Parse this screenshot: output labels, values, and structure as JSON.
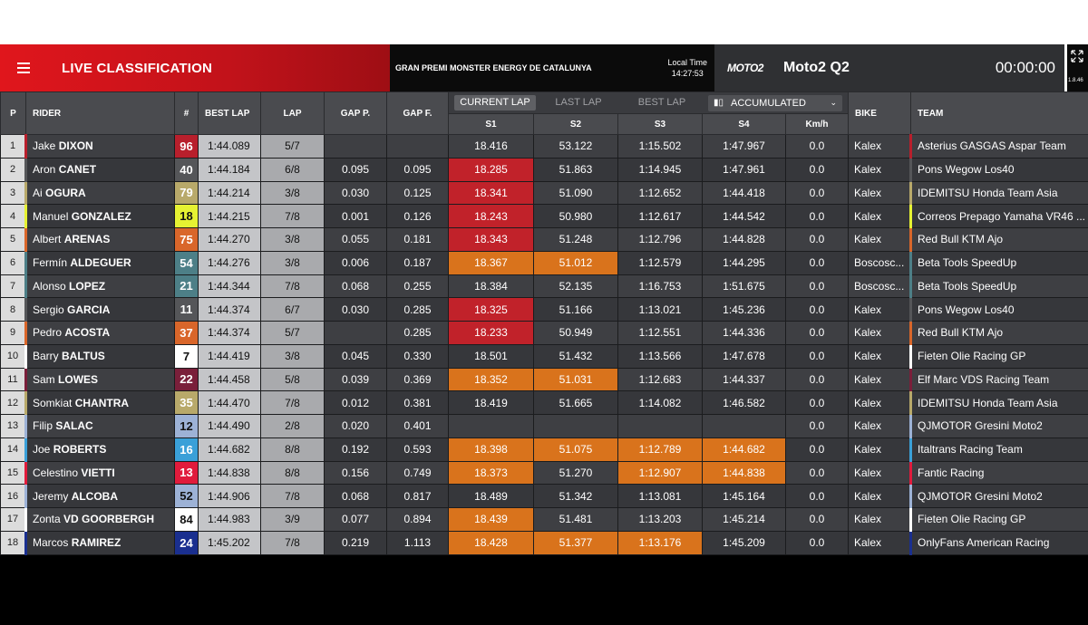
{
  "header": {
    "title": "LIVE CLASSIFICATION",
    "event": "GRAN PREMI MONSTER ENERGY DE CATALUNYA",
    "local_time_label": "Local Time",
    "local_time": "14:27:53",
    "category_logo": "MOTO2",
    "session": "Moto2 Q2",
    "clock": "00:00:00",
    "version": "1.8.46"
  },
  "columns": {
    "p": "P",
    "rider": "RIDER",
    "num": "#",
    "best_lap": "BEST LAP",
    "lap": "LAP",
    "gap_p": "GAP P.",
    "gap_f": "GAP F.",
    "tabs": [
      "CURRENT LAP",
      "LAST LAP",
      "BEST LAP"
    ],
    "accumulated": "ACCUMULATED",
    "s1": "S1",
    "s2": "S2",
    "s3": "S3",
    "s4": "S4",
    "kmh": "Km/h",
    "bike": "BIKE",
    "team": "TEAM"
  },
  "rows": [
    {
      "p": "1",
      "first": "Jake",
      "last": "DIXON",
      "num": "96",
      "num_bg": "#b81f2c",
      "num_fg": "#ffffff",
      "stripe": "#b81f2c",
      "best": "1:44.089",
      "lap": "5/7",
      "gap_p": "",
      "gap_f": "",
      "s1": "18.416",
      "s2": "53.122",
      "s3": "1:15.502",
      "s4": "1:47.967",
      "c1": "",
      "c2": "",
      "c3": "",
      "c4": "",
      "kmh": "0.0",
      "bike": "Kalex",
      "team": "Asterius GASGAS Aspar Team",
      "team_color": "#b81f2c"
    },
    {
      "p": "2",
      "first": "Aron",
      "last": "CANET",
      "num": "40",
      "num_bg": "#555659",
      "num_fg": "#ffffff",
      "stripe": "#555659",
      "best": "1:44.184",
      "lap": "6/8",
      "gap_p": "0.095",
      "gap_f": "0.095",
      "s1": "18.285",
      "s2": "51.863",
      "s3": "1:14.945",
      "s4": "1:47.961",
      "c1": "red",
      "c2": "",
      "c3": "",
      "c4": "",
      "kmh": "0.0",
      "bike": "Kalex",
      "team": "Pons Wegow Los40",
      "team_color": "#555659"
    },
    {
      "p": "3",
      "first": "Ai",
      "last": "OGURA",
      "num": "79",
      "num_bg": "#b8a96a",
      "num_fg": "#ffffff",
      "stripe": "#b8a96a",
      "best": "1:44.214",
      "lap": "3/8",
      "gap_p": "0.030",
      "gap_f": "0.125",
      "s1": "18.341",
      "s2": "51.090",
      "s3": "1:12.652",
      "s4": "1:44.418",
      "c1": "red",
      "c2": "",
      "c3": "",
      "c4": "",
      "kmh": "0.0",
      "bike": "Kalex",
      "team": "IDEMITSU Honda Team Asia",
      "team_color": "#b8a96a"
    },
    {
      "p": "4",
      "first": "Manuel",
      "last": "GONZALEZ",
      "num": "18",
      "num_bg": "#e6f232",
      "num_fg": "#111111",
      "stripe": "#e6f232",
      "best": "1:44.215",
      "lap": "7/8",
      "gap_p": "0.001",
      "gap_f": "0.126",
      "s1": "18.243",
      "s2": "50.980",
      "s3": "1:12.617",
      "s4": "1:44.542",
      "c1": "red",
      "c2": "",
      "c3": "",
      "c4": "",
      "kmh": "0.0",
      "bike": "Kalex",
      "team": "Correos Prepago Yamaha VR46 ...",
      "team_color": "#e6f232"
    },
    {
      "p": "5",
      "first": "Albert",
      "last": "ARENAS",
      "num": "75",
      "num_bg": "#d9662a",
      "num_fg": "#ffffff",
      "stripe": "#d9662a",
      "best": "1:44.270",
      "lap": "3/8",
      "gap_p": "0.055",
      "gap_f": "0.181",
      "s1": "18.343",
      "s2": "51.248",
      "s3": "1:12.796",
      "s4": "1:44.828",
      "c1": "red",
      "c2": "",
      "c3": "",
      "c4": "",
      "kmh": "0.0",
      "bike": "Kalex",
      "team": "Red Bull KTM Ajo",
      "team_color": "#d9662a"
    },
    {
      "p": "6",
      "first": "Fermín",
      "last": "ALDEGUER",
      "num": "54",
      "num_bg": "#4d7f87",
      "num_fg": "#ffffff",
      "stripe": "#4d7f87",
      "best": "1:44.276",
      "lap": "3/8",
      "gap_p": "0.006",
      "gap_f": "0.187",
      "s1": "18.367",
      "s2": "51.012",
      "s3": "1:12.579",
      "s4": "1:44.295",
      "c1": "orange",
      "c2": "orange",
      "c3": "",
      "c4": "",
      "kmh": "0.0",
      "bike": "Boscosc...",
      "team": "Beta Tools SpeedUp",
      "team_color": "#4d7f87"
    },
    {
      "p": "7",
      "first": "Alonso",
      "last": "LOPEZ",
      "num": "21",
      "num_bg": "#4d7f87",
      "num_fg": "#ffffff",
      "stripe": "#4d7f87",
      "best": "1:44.344",
      "lap": "7/8",
      "gap_p": "0.068",
      "gap_f": "0.255",
      "s1": "18.384",
      "s2": "52.135",
      "s3": "1:16.753",
      "s4": "1:51.675",
      "c1": "",
      "c2": "",
      "c3": "",
      "c4": "",
      "kmh": "0.0",
      "bike": "Boscosc...",
      "team": "Beta Tools SpeedUp",
      "team_color": "#4d7f87"
    },
    {
      "p": "8",
      "first": "Sergio",
      "last": "GARCIA",
      "num": "11",
      "num_bg": "#555659",
      "num_fg": "#ffffff",
      "stripe": "#555659",
      "best": "1:44.374",
      "lap": "6/7",
      "gap_p": "0.030",
      "gap_f": "0.285",
      "s1": "18.325",
      "s2": "51.166",
      "s3": "1:13.021",
      "s4": "1:45.236",
      "c1": "red",
      "c2": "",
      "c3": "",
      "c4": "",
      "kmh": "0.0",
      "bike": "Kalex",
      "team": "Pons Wegow Los40",
      "team_color": "#555659"
    },
    {
      "p": "9",
      "first": "Pedro",
      "last": "ACOSTA",
      "num": "37",
      "num_bg": "#d9662a",
      "num_fg": "#ffffff",
      "stripe": "#d9662a",
      "best": "1:44.374",
      "lap": "5/7",
      "gap_p": "",
      "gap_f": "0.285",
      "s1": "18.233",
      "s2": "50.949",
      "s3": "1:12.551",
      "s4": "1:44.336",
      "c1": "red",
      "c2": "",
      "c3": "",
      "c4": "",
      "kmh": "0.0",
      "bike": "Kalex",
      "team": "Red Bull KTM Ajo",
      "team_color": "#d9662a"
    },
    {
      "p": "10",
      "first": "Barry",
      "last": "BALTUS",
      "num": "7",
      "num_bg": "#ffffff",
      "num_fg": "#111111",
      "stripe": "#ffffff",
      "best": "1:44.419",
      "lap": "3/8",
      "gap_p": "0.045",
      "gap_f": "0.330",
      "s1": "18.501",
      "s2": "51.432",
      "s3": "1:13.566",
      "s4": "1:47.678",
      "c1": "",
      "c2": "",
      "c3": "",
      "c4": "",
      "kmh": "0.0",
      "bike": "Kalex",
      "team": "Fieten Olie Racing GP",
      "team_color": "#ffffff"
    },
    {
      "p": "11",
      "first": "Sam",
      "last": "LOWES",
      "num": "22",
      "num_bg": "#7a1f3a",
      "num_fg": "#ffffff",
      "stripe": "#7a1f3a",
      "best": "1:44.458",
      "lap": "5/8",
      "gap_p": "0.039",
      "gap_f": "0.369",
      "s1": "18.352",
      "s2": "51.031",
      "s3": "1:12.683",
      "s4": "1:44.337",
      "c1": "orange",
      "c2": "orange",
      "c3": "",
      "c4": "",
      "kmh": "0.0",
      "bike": "Kalex",
      "team": "Elf Marc VDS Racing Team",
      "team_color": "#7a1f3a"
    },
    {
      "p": "12",
      "first": "Somkiat",
      "last": "CHANTRA",
      "num": "35",
      "num_bg": "#b8a96a",
      "num_fg": "#ffffff",
      "stripe": "#b8a96a",
      "best": "1:44.470",
      "lap": "7/8",
      "gap_p": "0.012",
      "gap_f": "0.381",
      "s1": "18.419",
      "s2": "51.665",
      "s3": "1:14.082",
      "s4": "1:46.582",
      "c1": "",
      "c2": "",
      "c3": "",
      "c4": "",
      "kmh": "0.0",
      "bike": "Kalex",
      "team": "IDEMITSU Honda Team Asia",
      "team_color": "#b8a96a"
    },
    {
      "p": "13",
      "first": "Filip",
      "last": "SALAC",
      "num": "12",
      "num_bg": "#9db2d6",
      "num_fg": "#111111",
      "stripe": "#9db2d6",
      "best": "1:44.490",
      "lap": "2/8",
      "gap_p": "0.020",
      "gap_f": "0.401",
      "s1": "",
      "s2": "",
      "s3": "",
      "s4": "",
      "c1": "",
      "c2": "",
      "c3": "",
      "c4": "",
      "kmh": "0.0",
      "bike": "Kalex",
      "team": "QJMOTOR Gresini Moto2",
      "team_color": "#9db2d6"
    },
    {
      "p": "14",
      "first": "Joe",
      "last": "ROBERTS",
      "num": "16",
      "num_bg": "#3aa0d8",
      "num_fg": "#ffffff",
      "stripe": "#3aa0d8",
      "best": "1:44.682",
      "lap": "8/8",
      "gap_p": "0.192",
      "gap_f": "0.593",
      "s1": "18.398",
      "s2": "51.075",
      "s3": "1:12.789",
      "s4": "1:44.682",
      "c1": "orange",
      "c2": "orange",
      "c3": "orange",
      "c4": "orange",
      "kmh": "0.0",
      "bike": "Kalex",
      "team": "Italtrans Racing Team",
      "team_color": "#3aa0d8"
    },
    {
      "p": "15",
      "first": "Celestino",
      "last": "VIETTI",
      "num": "13",
      "num_bg": "#e01b3c",
      "num_fg": "#ffffff",
      "stripe": "#e01b3c",
      "best": "1:44.838",
      "lap": "8/8",
      "gap_p": "0.156",
      "gap_f": "0.749",
      "s1": "18.373",
      "s2": "51.270",
      "s3": "1:12.907",
      "s4": "1:44.838",
      "c1": "orange",
      "c2": "",
      "c3": "orange",
      "c4": "orange",
      "kmh": "0.0",
      "bike": "Kalex",
      "team": "Fantic Racing",
      "team_color": "#e01b3c"
    },
    {
      "p": "16",
      "first": "Jeremy",
      "last": "ALCOBA",
      "num": "52",
      "num_bg": "#9db2d6",
      "num_fg": "#111111",
      "stripe": "#9db2d6",
      "best": "1:44.906",
      "lap": "7/8",
      "gap_p": "0.068",
      "gap_f": "0.817",
      "s1": "18.489",
      "s2": "51.342",
      "s3": "1:13.081",
      "s4": "1:45.164",
      "c1": "",
      "c2": "",
      "c3": "",
      "c4": "",
      "kmh": "0.0",
      "bike": "Kalex",
      "team": "QJMOTOR Gresini Moto2",
      "team_color": "#9db2d6"
    },
    {
      "p": "17",
      "first": "Zonta",
      "last": "VD GOORBERGH",
      "num": "84",
      "num_bg": "#ffffff",
      "num_fg": "#111111",
      "stripe": "#ffffff",
      "best": "1:44.983",
      "lap": "3/9",
      "gap_p": "0.077",
      "gap_f": "0.894",
      "s1": "18.439",
      "s2": "51.481",
      "s3": "1:13.203",
      "s4": "1:45.214",
      "c1": "orange",
      "c2": "",
      "c3": "",
      "c4": "",
      "kmh": "0.0",
      "bike": "Kalex",
      "team": "Fieten Olie Racing GP",
      "team_color": "#ffffff"
    },
    {
      "p": "18",
      "first": "Marcos",
      "last": "RAMIREZ",
      "num": "24",
      "num_bg": "#1a2f8f",
      "num_fg": "#ffffff",
      "stripe": "#1a2f8f",
      "best": "1:45.202",
      "lap": "7/8",
      "gap_p": "0.219",
      "gap_f": "1.113",
      "s1": "18.428",
      "s2": "51.377",
      "s3": "1:13.176",
      "s4": "1:45.209",
      "c1": "orange",
      "c2": "orange",
      "c3": "orange",
      "c4": "",
      "kmh": "0.0",
      "bike": "Kalex",
      "team": "OnlyFans American Racing",
      "team_color": "#1a2f8f"
    }
  ],
  "colors": {
    "best_sector_red": "#c1222a",
    "personal_best_orange": "#d9731c"
  }
}
